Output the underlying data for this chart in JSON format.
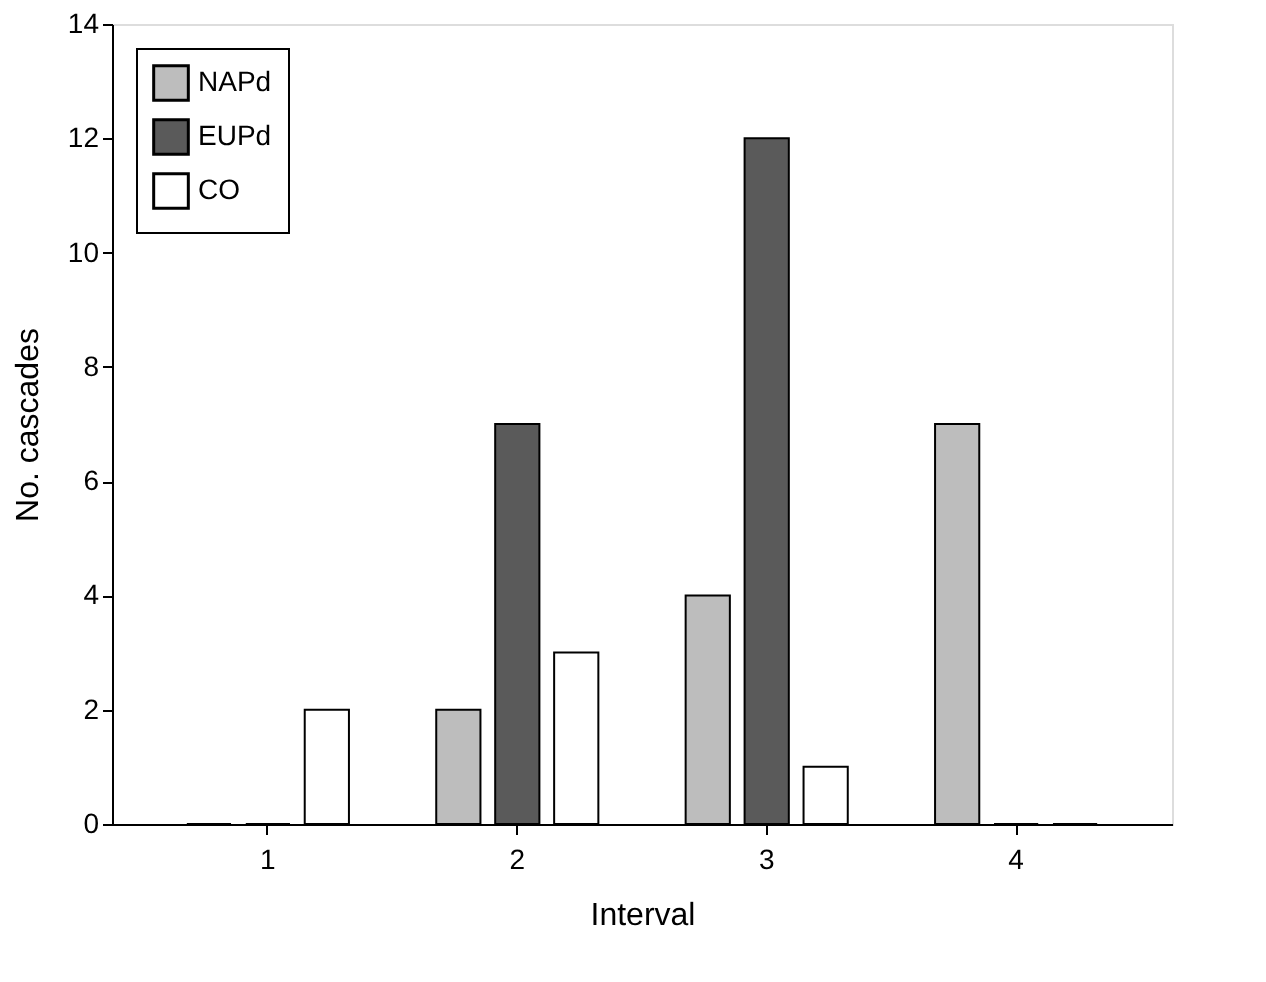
{
  "chart_data": {
    "type": "bar",
    "xlabel": "Interval",
    "ylabel": "No. cascades",
    "categories": [
      "1",
      "2",
      "3",
      "4"
    ],
    "series": [
      {
        "name": "NAPd",
        "color": "#bdbdbd",
        "values": [
          0,
          2,
          4,
          7
        ]
      },
      {
        "name": "EUPd",
        "color": "#5a5a5a",
        "values": [
          0,
          7,
          12,
          0
        ]
      },
      {
        "name": "CO",
        "color": "#ffffff",
        "values": [
          2,
          3,
          1,
          0
        ]
      }
    ],
    "ylim": [
      0,
      14
    ],
    "yticks": [
      0,
      2,
      4,
      6,
      8,
      10,
      12,
      14
    ],
    "grid": false,
    "legend": "top left"
  }
}
